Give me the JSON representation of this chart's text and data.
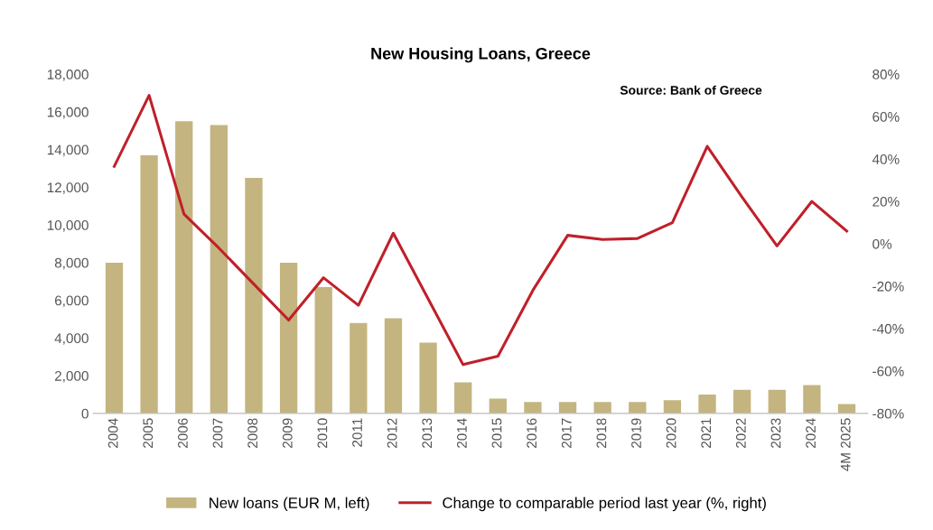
{
  "chart_data": {
    "type": "bar",
    "title": "New Housing Loans, Greece",
    "categories": [
      "2004",
      "2005",
      "2006",
      "2007",
      "2008",
      "2009",
      "2010",
      "2011",
      "2012",
      "2013",
      "2014",
      "2015",
      "2016",
      "2017",
      "2018",
      "2019",
      "2020",
      "2021",
      "2022",
      "2023",
      "2024",
      "4M 2025"
    ],
    "series": [
      {
        "name": "New loans (EUR M, left)",
        "color": "#c4b47f",
        "values": [
          8000,
          13700,
          15500,
          15300,
          12500,
          8000,
          6700,
          4800,
          5050,
          3750,
          1650,
          780,
          600,
          600,
          600,
          600,
          700,
          1000,
          1250,
          1250,
          1500,
          500
        ]
      },
      {
        "name": "Change to comparable period last year (%, right)",
        "type": "line",
        "axis": "y2",
        "color": "#c0202a",
        "values": [
          36.5,
          70,
          14,
          -2,
          -19,
          -36,
          -16,
          -29,
          5,
          -26,
          -57,
          -53,
          -22,
          4,
          2,
          2.5,
          10,
          46,
          22,
          -1,
          20,
          6
        ]
      }
    ],
    "ylim": [
      0,
      18000
    ],
    "yticks": [
      {
        "value": 0,
        "label": "0"
      },
      {
        "value": 2000,
        "label": "2,000"
      },
      {
        "value": 4000,
        "label": "4,000"
      },
      {
        "value": 6000,
        "label": "6,000"
      },
      {
        "value": 8000,
        "label": "8,000"
      },
      {
        "value": 10000,
        "label": "10,000"
      },
      {
        "value": 12000,
        "label": "12,000"
      },
      {
        "value": 14000,
        "label": "14,000"
      },
      {
        "value": 16000,
        "label": "16,000"
      },
      {
        "value": 18000,
        "label": "18,000"
      }
    ],
    "y2lim": [
      -80,
      80
    ],
    "y2ticks": [
      {
        "value": -80,
        "label": "-80%"
      },
      {
        "value": -60,
        "label": "-60%"
      },
      {
        "value": -40,
        "label": "-40%"
      },
      {
        "value": -20,
        "label": "-20%"
      },
      {
        "value": 0,
        "label": "0%"
      },
      {
        "value": 20,
        "label": "20%"
      },
      {
        "value": 40,
        "label": "40%"
      },
      {
        "value": 60,
        "label": "60%"
      },
      {
        "value": 80,
        "label": "80%"
      }
    ],
    "annotations": [
      "Source: Bank of Greece"
    ],
    "legend": "bottom",
    "grid": false
  }
}
